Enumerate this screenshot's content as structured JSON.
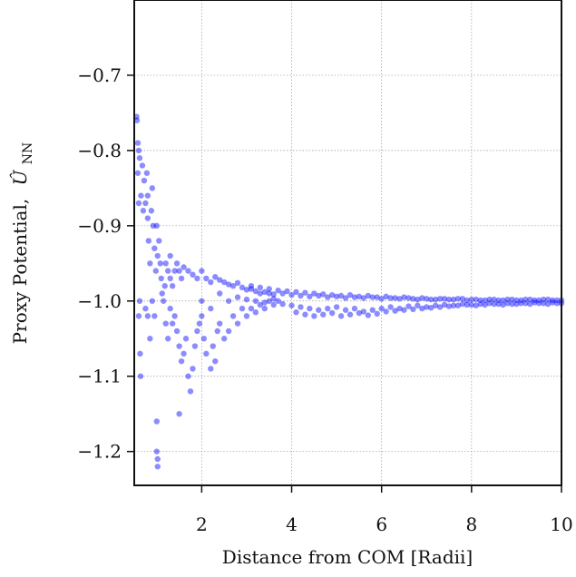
{
  "chart_data": {
    "type": "scatter",
    "title": "",
    "xlabel": "Distance from COM [Radii]",
    "ylabel": "Proxy Potential, ÛNN",
    "ylabel_parts": {
      "prefix": "Proxy Potential,",
      "symbol": "Û",
      "subscript": "NN"
    },
    "xlim": [
      0.5,
      10
    ],
    "ylim": [
      -1.245,
      -0.6
    ],
    "xticks": [
      2,
      4,
      6,
      8,
      10
    ],
    "xtick_labels": [
      "2",
      "4",
      "6",
      "8",
      "10"
    ],
    "yticks": [
      -0.7,
      -0.8,
      -0.9,
      -1.0,
      -1.1,
      -1.2
    ],
    "ytick_labels": [
      "−0.7",
      "−0.8",
      "−0.9",
      "−1.0",
      "−1.1",
      "−1.2"
    ],
    "grid": true,
    "legend": "none",
    "marker_color": "#0000ff",
    "marker_opacity": 0.45,
    "series": [
      {
        "values": [
          [
            0.55,
            -0.755
          ],
          [
            0.56,
            -0.76
          ],
          [
            0.58,
            -0.79
          ],
          [
            0.6,
            -0.8
          ],
          [
            0.62,
            -0.81
          ],
          [
            0.58,
            -0.83
          ],
          [
            0.6,
            -0.87
          ],
          [
            0.65,
            -0.86
          ],
          [
            0.68,
            -0.82
          ],
          [
            0.62,
            -1.0
          ],
          [
            0.6,
            -1.02
          ],
          [
            0.63,
            -1.07
          ],
          [
            0.64,
            -1.1
          ],
          [
            0.7,
            -0.88
          ],
          [
            0.72,
            -0.84
          ],
          [
            0.75,
            -0.87
          ],
          [
            0.78,
            -0.83
          ],
          [
            0.8,
            -0.86
          ],
          [
            0.8,
            -0.89
          ],
          [
            0.82,
            -0.92
          ],
          [
            0.85,
            -0.95
          ],
          [
            0.88,
            -0.88
          ],
          [
            0.9,
            -0.85
          ],
          [
            0.92,
            -0.9
          ],
          [
            0.95,
            -0.93
          ],
          [
            0.98,
            -0.96
          ],
          [
            1.0,
            -0.9
          ],
          [
            1.02,
            -0.94
          ],
          [
            1.05,
            -0.92
          ],
          [
            1.08,
            -0.95
          ],
          [
            1.1,
            -0.97
          ],
          [
            1.12,
            -0.99
          ],
          [
            1.0,
            -1.2
          ],
          [
            1.02,
            -1.21
          ],
          [
            1.0,
            -1.16
          ],
          [
            1.02,
            -1.22
          ],
          [
            0.9,
            -1.0
          ],
          [
            0.95,
            -1.02
          ],
          [
            0.85,
            -1.05
          ],
          [
            0.8,
            -1.02
          ],
          [
            0.75,
            -1.01
          ],
          [
            1.15,
            -1.0
          ],
          [
            1.18,
            -0.98
          ],
          [
            1.2,
            -1.03
          ],
          [
            1.25,
            -1.05
          ],
          [
            1.2,
            -0.95
          ],
          [
            1.25,
            -0.96
          ],
          [
            1.3,
            -0.94
          ],
          [
            1.3,
            -0.97
          ],
          [
            1.35,
            -0.98
          ],
          [
            1.4,
            -0.96
          ],
          [
            1.45,
            -0.95
          ],
          [
            1.5,
            -0.96
          ],
          [
            1.55,
            -0.97
          ],
          [
            1.3,
            -1.01
          ],
          [
            1.35,
            -1.03
          ],
          [
            1.4,
            -1.02
          ],
          [
            1.45,
            -1.04
          ],
          [
            1.5,
            -1.06
          ],
          [
            1.55,
            -1.08
          ],
          [
            1.5,
            -1.15
          ],
          [
            1.6,
            -1.07
          ],
          [
            1.65,
            -1.05
          ],
          [
            1.7,
            -1.1
          ],
          [
            1.75,
            -1.12
          ],
          [
            1.8,
            -1.09
          ],
          [
            1.85,
            -1.06
          ],
          [
            1.9,
            -1.04
          ],
          [
            1.95,
            -1.03
          ],
          [
            2.0,
            -1.02
          ],
          [
            2.05,
            -1.05
          ],
          [
            2.1,
            -1.07
          ],
          [
            2.2,
            -1.09
          ],
          [
            2.25,
            -1.06
          ],
          [
            2.3,
            -1.08
          ],
          [
            2.35,
            -1.04
          ],
          [
            2.4,
            -1.03
          ],
          [
            2.5,
            -1.05
          ],
          [
            2.6,
            -1.04
          ],
          [
            2.7,
            -1.02
          ],
          [
            2.8,
            -1.03
          ],
          [
            2.9,
            -1.01
          ],
          [
            3.0,
            -1.02
          ],
          [
            3.1,
            -1.01
          ],
          [
            3.2,
            -1.015
          ],
          [
            3.3,
            -1.005
          ],
          [
            3.4,
            -1.01
          ],
          [
            3.5,
            -1.0
          ],
          [
            3.6,
            -1.005
          ],
          [
            3.7,
            -1.0
          ],
          [
            1.6,
            -0.955
          ],
          [
            1.7,
            -0.96
          ],
          [
            1.8,
            -0.965
          ],
          [
            1.9,
            -0.97
          ],
          [
            2.0,
            -0.96
          ],
          [
            2.1,
            -0.97
          ],
          [
            2.2,
            -0.975
          ],
          [
            2.3,
            -0.968
          ],
          [
            2.4,
            -0.972
          ],
          [
            2.5,
            -0.975
          ],
          [
            2.6,
            -0.978
          ],
          [
            2.7,
            -0.98
          ],
          [
            2.8,
            -0.976
          ],
          [
            2.9,
            -0.982
          ],
          [
            3.0,
            -0.985
          ],
          [
            3.1,
            -0.984
          ],
          [
            3.2,
            -0.987
          ],
          [
            3.3,
            -0.99
          ],
          [
            3.4,
            -0.988
          ],
          [
            3.5,
            -0.99
          ],
          [
            3.6,
            -0.991
          ],
          [
            3.8,
            -0.99
          ],
          [
            4.0,
            -0.992
          ],
          [
            4.2,
            -0.993
          ],
          [
            4.4,
            -0.994
          ],
          [
            4.6,
            -0.993
          ],
          [
            4.8,
            -0.995
          ],
          [
            5.0,
            -0.994
          ],
          [
            5.2,
            -0.996
          ],
          [
            5.4,
            -0.995
          ],
          [
            5.6,
            -0.996
          ],
          [
            5.8,
            -0.995
          ],
          [
            6.0,
            -0.997
          ],
          [
            6.2,
            -0.996
          ],
          [
            6.4,
            -0.997
          ],
          [
            6.6,
            -0.996
          ],
          [
            6.8,
            -0.998
          ],
          [
            7.0,
            -0.997
          ],
          [
            7.2,
            -0.998
          ],
          [
            7.4,
            -0.997
          ],
          [
            7.6,
            -0.998
          ],
          [
            7.8,
            -0.997
          ],
          [
            8.0,
            -0.998
          ],
          [
            8.2,
            -0.999
          ],
          [
            8.4,
            -0.998
          ],
          [
            8.6,
            -0.999
          ],
          [
            8.8,
            -0.998
          ],
          [
            9.0,
            -0.999
          ],
          [
            9.2,
            -0.998
          ],
          [
            9.4,
            -0.999
          ],
          [
            9.6,
            -0.998
          ],
          [
            9.8,
            -0.999
          ],
          [
            10.0,
            -0.999
          ],
          [
            2.0,
            -1.0
          ],
          [
            2.2,
            -1.01
          ],
          [
            2.4,
            -0.99
          ],
          [
            2.6,
            -1.0
          ],
          [
            2.8,
            -0.995
          ],
          [
            3.0,
            -0.998
          ],
          [
            3.2,
            -1.0
          ],
          [
            3.4,
            -1.002
          ],
          [
            3.6,
            -0.997
          ],
          [
            3.8,
            -1.004
          ],
          [
            4.0,
            -1.006
          ],
          [
            4.2,
            -1.008
          ],
          [
            4.4,
            -1.01
          ],
          [
            4.6,
            -1.012
          ],
          [
            4.8,
            -1.01
          ],
          [
            5.0,
            -1.008
          ],
          [
            5.2,
            -1.012
          ],
          [
            5.4,
            -1.01
          ],
          [
            5.6,
            -1.014
          ],
          [
            5.8,
            -1.012
          ],
          [
            6.0,
            -1.01
          ],
          [
            6.2,
            -1.008
          ],
          [
            6.4,
            -1.01
          ],
          [
            6.6,
            -1.007
          ],
          [
            6.8,
            -1.006
          ],
          [
            7.0,
            -1.008
          ],
          [
            7.2,
            -1.006
          ],
          [
            7.4,
            -1.005
          ],
          [
            7.6,
            -1.006
          ],
          [
            7.8,
            -1.004
          ],
          [
            8.0,
            -1.005
          ],
          [
            8.2,
            -1.004
          ],
          [
            8.4,
            -1.003
          ],
          [
            8.6,
            -1.004
          ],
          [
            8.8,
            -1.003
          ],
          [
            9.0,
            -1.004
          ],
          [
            9.2,
            -1.003
          ],
          [
            9.4,
            -1.002
          ],
          [
            9.6,
            -1.003
          ],
          [
            9.8,
            -1.002
          ],
          [
            10.0,
            -1.003
          ],
          [
            3.1,
            -0.98
          ],
          [
            3.3,
            -0.982
          ],
          [
            3.5,
            -0.984
          ],
          [
            3.7,
            -0.986
          ],
          [
            3.9,
            -0.987
          ],
          [
            4.1,
            -0.988
          ],
          [
            4.3,
            -0.989
          ],
          [
            4.5,
            -0.99
          ],
          [
            4.7,
            -0.991
          ],
          [
            4.9,
            -0.992
          ],
          [
            5.1,
            -0.993
          ],
          [
            5.3,
            -0.992
          ],
          [
            5.5,
            -0.994
          ],
          [
            5.7,
            -0.993
          ],
          [
            5.9,
            -0.995
          ],
          [
            6.1,
            -0.994
          ],
          [
            6.3,
            -0.996
          ],
          [
            6.5,
            -0.995
          ],
          [
            6.7,
            -0.997
          ],
          [
            6.9,
            -0.996
          ],
          [
            7.1,
            -0.998
          ],
          [
            7.3,
            -0.997
          ],
          [
            7.5,
            -0.998
          ],
          [
            7.7,
            -0.997
          ],
          [
            7.9,
            -0.999
          ],
          [
            8.1,
            -0.998
          ],
          [
            8.3,
            -0.999
          ],
          [
            8.5,
            -0.998
          ],
          [
            8.7,
            -0.999
          ],
          [
            8.9,
            -0.998
          ],
          [
            9.1,
            -0.999
          ],
          [
            9.3,
            -0.998
          ],
          [
            9.5,
            -0.999
          ],
          [
            9.7,
            -0.998
          ],
          [
            9.9,
            -0.999
          ],
          [
            4.1,
            -1.015
          ],
          [
            4.3,
            -1.018
          ],
          [
            4.5,
            -1.02
          ],
          [
            4.7,
            -1.018
          ],
          [
            4.9,
            -1.016
          ],
          [
            5.1,
            -1.02
          ],
          [
            5.3,
            -1.018
          ],
          [
            5.5,
            -1.016
          ],
          [
            5.7,
            -1.019
          ],
          [
            5.9,
            -1.017
          ],
          [
            6.1,
            -1.014
          ],
          [
            6.3,
            -1.013
          ],
          [
            6.5,
            -1.012
          ],
          [
            6.7,
            -1.011
          ],
          [
            6.9,
            -1.01
          ],
          [
            7.1,
            -1.009
          ],
          [
            7.3,
            -1.008
          ],
          [
            7.5,
            -1.007
          ],
          [
            7.7,
            -1.006
          ],
          [
            7.9,
            -1.005
          ],
          [
            8.1,
            -1.006
          ],
          [
            8.3,
            -1.005
          ],
          [
            8.5,
            -1.004
          ],
          [
            8.7,
            -1.005
          ],
          [
            8.9,
            -1.004
          ],
          [
            9.1,
            -1.003
          ],
          [
            9.3,
            -1.004
          ],
          [
            9.5,
            -1.003
          ],
          [
            9.7,
            -1.004
          ],
          [
            9.9,
            -1.003
          ]
        ]
      }
    ]
  }
}
